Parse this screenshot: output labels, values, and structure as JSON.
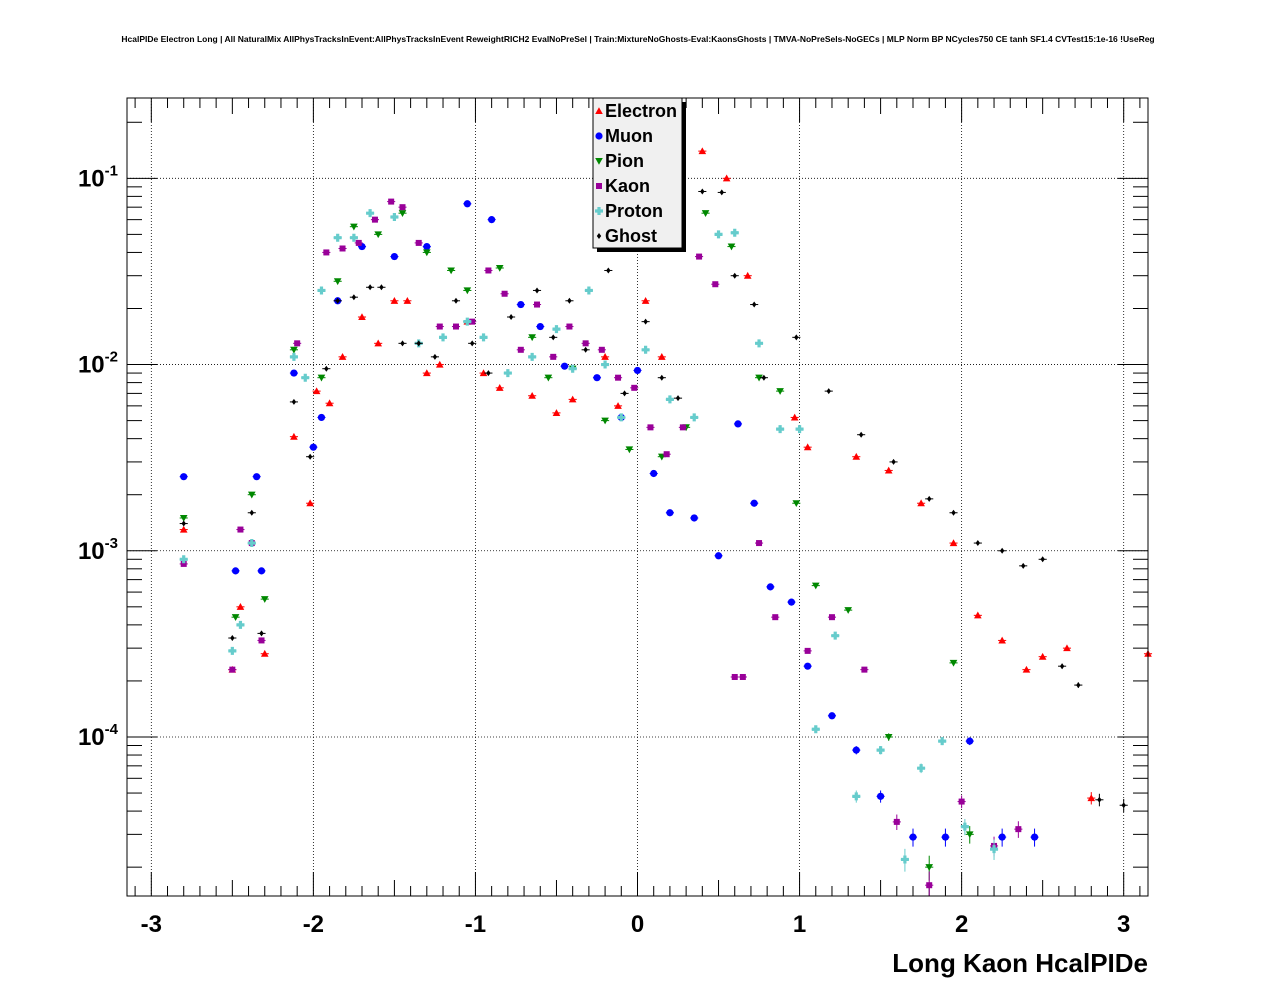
{
  "title": "HcalPIDe Electron Long | All NaturalMix AllPhysTracksInEvent:AllPhysTracksInEvent ReweightRICH2 EvalNoPreSel | Train:MixtureNoGhosts-Eval:KaonsGhosts | TMVA-NoPreSels-NoGECs | MLP Norm BP NCycles750 CE tanh SF1.4 CVTest15:1e-16 !UseReg",
  "colors": {
    "Electron": "#ff0000",
    "Muon": "#0000ff",
    "Pion": "#008800",
    "Kaon": "#990099",
    "Proton": "#66cccc",
    "Ghost": "#000000"
  },
  "chart_data": {
    "type": "scatter",
    "xlabel": "Long Kaon HcalPIDe",
    "ylabel": "",
    "xlim": [
      -3.15,
      3.15
    ],
    "ylim": [
      1.4e-05,
      0.27
    ],
    "yscale": "log",
    "grid": true,
    "legend_position": "top-center",
    "x_ticks": [
      "-3",
      "-2",
      "-1",
      "0",
      "1",
      "2",
      "3"
    ],
    "y_ticks": [
      {
        "base": "10",
        "exp": "-1",
        "value": 0.1
      },
      {
        "base": "10",
        "exp": "-2",
        "value": 0.01
      },
      {
        "base": "10",
        "exp": "-3",
        "value": 0.001
      },
      {
        "base": "10",
        "exp": "-4",
        "value": 0.0001
      }
    ],
    "series": [
      {
        "name": "Electron",
        "marker": "triangle-up",
        "color": "#ff0000",
        "x": [
          -2.8,
          -2.5,
          -2.45,
          -2.3,
          -2.12,
          -2.02,
          -1.98,
          -1.9,
          -1.82,
          -1.7,
          -1.6,
          -1.5,
          -1.42,
          -1.3,
          -1.22,
          -1.05,
          -0.95,
          -0.85,
          -0.65,
          -0.5,
          -0.4,
          -0.2,
          -0.12,
          0.05,
          0.15,
          0.4,
          0.55,
          0.68,
          0.97,
          1.05,
          1.35,
          1.55,
          1.75,
          1.95,
          2.1,
          2.25,
          2.4,
          2.5,
          2.65,
          2.8,
          3.15
        ],
        "y": [
          0.0013,
          0.00023,
          0.0005,
          0.00028,
          0.0041,
          0.0018,
          0.0072,
          0.0062,
          0.011,
          0.018,
          0.013,
          0.022,
          0.022,
          0.009,
          0.01,
          0.017,
          0.009,
          0.0075,
          0.0068,
          0.0055,
          0.0065,
          0.011,
          0.006,
          0.022,
          0.011,
          0.14,
          0.1,
          0.03,
          0.0052,
          0.0036,
          0.0032,
          0.0027,
          0.0018,
          0.0011,
          0.00045,
          0.00033,
          0.00023,
          0.00027,
          0.0003,
          4.7e-05,
          0.00028
        ]
      },
      {
        "name": "Muon",
        "marker": "circle",
        "color": "#0000ff",
        "x": [
          -2.8,
          -2.48,
          -2.35,
          -2.32,
          -2.12,
          -2.0,
          -1.95,
          -1.85,
          -1.7,
          -1.5,
          -1.3,
          -1.05,
          -0.9,
          -0.72,
          -0.6,
          -0.45,
          -0.25,
          -0.1,
          0.0,
          0.1,
          0.2,
          0.35,
          0.5,
          0.62,
          0.72,
          0.82,
          0.95,
          1.05,
          1.2,
          1.35,
          1.5,
          1.7,
          1.9,
          2.05,
          2.25,
          2.45
        ],
        "y": [
          0.0025,
          0.00078,
          0.0025,
          0.00078,
          0.009,
          0.0036,
          0.0052,
          0.022,
          0.043,
          0.038,
          0.043,
          0.073,
          0.06,
          0.021,
          0.016,
          0.0098,
          0.0085,
          0.0052,
          0.0093,
          0.0026,
          0.0016,
          0.0015,
          0.00094,
          0.0048,
          0.0018,
          0.00064,
          0.00053,
          0.00024,
          0.00013,
          8.5e-05,
          4.8e-05,
          2.9e-05,
          2.9e-05,
          9.5e-05,
          2.9e-05,
          2.9e-05
        ]
      },
      {
        "name": "Pion",
        "marker": "triangle-down",
        "color": "#008800",
        "x": [
          -2.8,
          -2.48,
          -2.38,
          -2.3,
          -2.12,
          -1.95,
          -1.85,
          -1.75,
          -1.6,
          -1.45,
          -1.3,
          -1.15,
          -1.05,
          -0.85,
          -0.65,
          -0.55,
          -0.4,
          -0.2,
          -0.05,
          0.15,
          0.3,
          0.42,
          0.58,
          0.75,
          0.88,
          0.98,
          1.1,
          1.3,
          1.55,
          1.8,
          1.95,
          2.05
        ],
        "y": [
          0.0015,
          0.00044,
          0.002,
          0.00055,
          0.012,
          0.0085,
          0.028,
          0.055,
          0.05,
          0.065,
          0.04,
          0.032,
          0.025,
          0.033,
          0.014,
          0.0085,
          0.0095,
          0.005,
          0.0035,
          0.0032,
          0.0046,
          0.065,
          0.043,
          0.0085,
          0.0072,
          0.0018,
          0.00065,
          0.00048,
          0.0001,
          2e-05,
          0.00025,
          3e-05
        ]
      },
      {
        "name": "Kaon",
        "marker": "square",
        "color": "#990099",
        "x": [
          -2.8,
          -2.5,
          -2.45,
          -2.38,
          -2.32,
          -2.1,
          -1.92,
          -1.82,
          -1.72,
          -1.62,
          -1.52,
          -1.45,
          -1.35,
          -1.22,
          -1.12,
          -1.02,
          -0.92,
          -0.82,
          -0.72,
          -0.62,
          -0.52,
          -0.42,
          -0.32,
          -0.22,
          -0.12,
          -0.02,
          0.08,
          0.18,
          0.28,
          0.38,
          0.48,
          0.6,
          0.65,
          0.75,
          0.85,
          1.05,
          1.2,
          1.4,
          1.6,
          1.8,
          2.0,
          2.2,
          2.35
        ],
        "y": [
          0.00085,
          0.00023,
          0.0013,
          0.0011,
          0.00033,
          0.013,
          0.04,
          0.042,
          0.045,
          0.06,
          0.075,
          0.07,
          0.045,
          0.016,
          0.016,
          0.017,
          0.032,
          0.024,
          0.012,
          0.021,
          0.011,
          0.016,
          0.013,
          0.012,
          0.0085,
          0.0075,
          0.0046,
          0.0033,
          0.0046,
          0.038,
          0.027,
          0.00021,
          0.00021,
          0.0011,
          0.00044,
          0.00029,
          0.00044,
          0.00023,
          3.5e-05,
          1.6e-05,
          4.5e-05,
          2.6e-05,
          3.2e-05
        ]
      },
      {
        "name": "Proton",
        "marker": "cross",
        "color": "#66cccc",
        "x": [
          -2.8,
          -2.5,
          -2.45,
          -2.38,
          -2.12,
          -2.05,
          -1.95,
          -1.85,
          -1.75,
          -1.65,
          -1.5,
          -1.35,
          -1.2,
          -1.05,
          -0.95,
          -0.8,
          -0.65,
          -0.5,
          -0.4,
          -0.3,
          -0.2,
          -0.1,
          0.05,
          0.2,
          0.35,
          0.5,
          0.6,
          0.75,
          0.88,
          1.0,
          1.1,
          1.22,
          1.35,
          1.5,
          1.65,
          1.75,
          1.88,
          2.02,
          2.2
        ],
        "y": [
          0.0009,
          0.00029,
          0.0004,
          0.0011,
          0.011,
          0.0085,
          0.025,
          0.048,
          0.048,
          0.065,
          0.062,
          0.013,
          0.014,
          0.017,
          0.014,
          0.009,
          0.011,
          0.0155,
          0.0095,
          0.025,
          0.01,
          0.0052,
          0.012,
          0.0065,
          0.0052,
          0.05,
          0.051,
          0.013,
          0.0045,
          0.0045,
          0.00011,
          0.00035,
          4.8e-05,
          8.5e-05,
          2.2e-05,
          6.8e-05,
          9.5e-05,
          3.3e-05,
          2.5e-05
        ]
      },
      {
        "name": "Ghost",
        "marker": "diamond",
        "color": "#000000",
        "x": [
          -2.8,
          -2.5,
          -2.38,
          -2.32,
          -2.12,
          -2.02,
          -1.92,
          -1.85,
          -1.75,
          -1.65,
          -1.58,
          -1.45,
          -1.35,
          -1.25,
          -1.12,
          -1.02,
          -0.92,
          -0.78,
          -0.62,
          -0.52,
          -0.42,
          -0.32,
          -0.18,
          -0.08,
          0.05,
          0.15,
          0.25,
          0.4,
          0.52,
          0.6,
          0.72,
          0.78,
          0.98,
          1.18,
          1.38,
          1.58,
          1.8,
          1.95,
          2.1,
          2.25,
          2.38,
          2.5,
          2.62,
          2.72,
          2.85,
          3.0
        ],
        "y": [
          0.0014,
          0.00034,
          0.0016,
          0.00036,
          0.0063,
          0.0032,
          0.0095,
          0.022,
          0.023,
          0.026,
          0.026,
          0.013,
          0.013,
          0.011,
          0.022,
          0.013,
          0.009,
          0.018,
          0.025,
          0.014,
          0.022,
          0.012,
          0.032,
          0.007,
          0.017,
          0.0085,
          0.0066,
          0.085,
          0.084,
          0.03,
          0.021,
          0.0085,
          0.014,
          0.0072,
          0.0042,
          0.003,
          0.0019,
          0.0016,
          0.0011,
          0.001,
          0.00083,
          0.0009,
          0.00024,
          0.00019,
          4.6e-05,
          4.3e-05
        ]
      }
    ]
  }
}
